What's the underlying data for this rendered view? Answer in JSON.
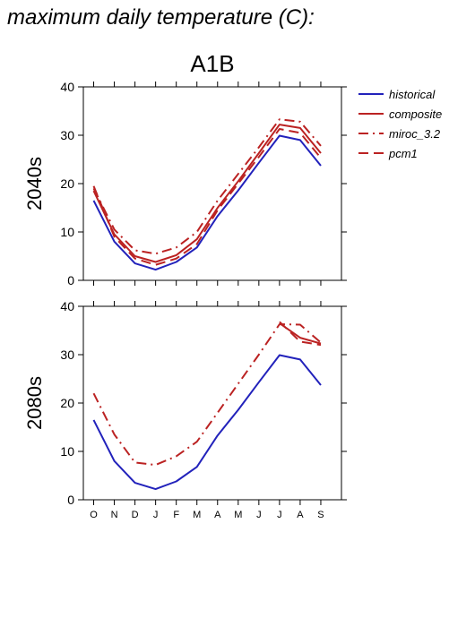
{
  "chart_data": {
    "type": "line",
    "title": "maximum daily temperature (C):",
    "subtitle": "A1B",
    "categories": [
      "O",
      "N",
      "D",
      "J",
      "F",
      "M",
      "A",
      "M",
      "J",
      "J",
      "A",
      "S"
    ],
    "ylim": [
      0,
      40
    ],
    "yticks": [
      0,
      10,
      20,
      30,
      40
    ],
    "legend": {
      "placement": "right",
      "entries": [
        {
          "name": "historical",
          "color": "#2222bb",
          "style": "solid"
        },
        {
          "name": "composite",
          "color": "#bb2222",
          "style": "solid"
        },
        {
          "name": "miroc_3.2",
          "color": "#bb2222",
          "style": "dashdot"
        },
        {
          "name": "pcm1",
          "color": "#bb2222",
          "style": "dashed"
        }
      ]
    },
    "panels": [
      {
        "label": "2040s",
        "series": [
          {
            "name": "historical",
            "values": [
              16.5,
              8.0,
              3.5,
              2.2,
              3.8,
              6.8,
              13.3,
              18.6,
              24.3,
              29.9,
              29.0,
              23.7
            ]
          },
          {
            "name": "composite",
            "values": [
              18.5,
              9.5,
              5.0,
              3.8,
              5.2,
              8.5,
              15.0,
              20.5,
              26.3,
              32.2,
              31.5,
              26.3
            ]
          },
          {
            "name": "miroc_3.2",
            "values": [
              19.0,
              10.5,
              6.2,
              5.5,
              6.8,
              10.0,
              16.5,
              22.0,
              27.5,
              33.3,
              32.8,
              27.8
            ]
          },
          {
            "name": "pcm1",
            "values": [
              19.5,
              9.0,
              4.5,
              3.2,
              4.5,
              7.5,
              14.5,
              20.0,
              25.5,
              31.3,
              30.5,
              25.3
            ]
          }
        ]
      },
      {
        "label": "2080s",
        "series": [
          {
            "name": "historical",
            "values": [
              16.5,
              8.0,
              3.5,
              2.2,
              3.8,
              6.8,
              13.3,
              18.6,
              24.3,
              29.9,
              29.0,
              23.7
            ]
          },
          {
            "name": "composite",
            "values": [
              null,
              null,
              null,
              null,
              null,
              null,
              null,
              null,
              null,
              36.5,
              33.5,
              32.3
            ]
          },
          {
            "name": "miroc_3.2",
            "values": [
              22.0,
              13.5,
              7.7,
              7.2,
              9.0,
              12.0,
              18.0,
              24.0,
              30.0,
              36.3,
              36.2,
              32.5
            ]
          },
          {
            "name": "pcm1",
            "values": [
              null,
              null,
              null,
              null,
              null,
              null,
              null,
              null,
              null,
              36.8,
              32.7,
              32.0
            ]
          }
        ]
      }
    ]
  }
}
